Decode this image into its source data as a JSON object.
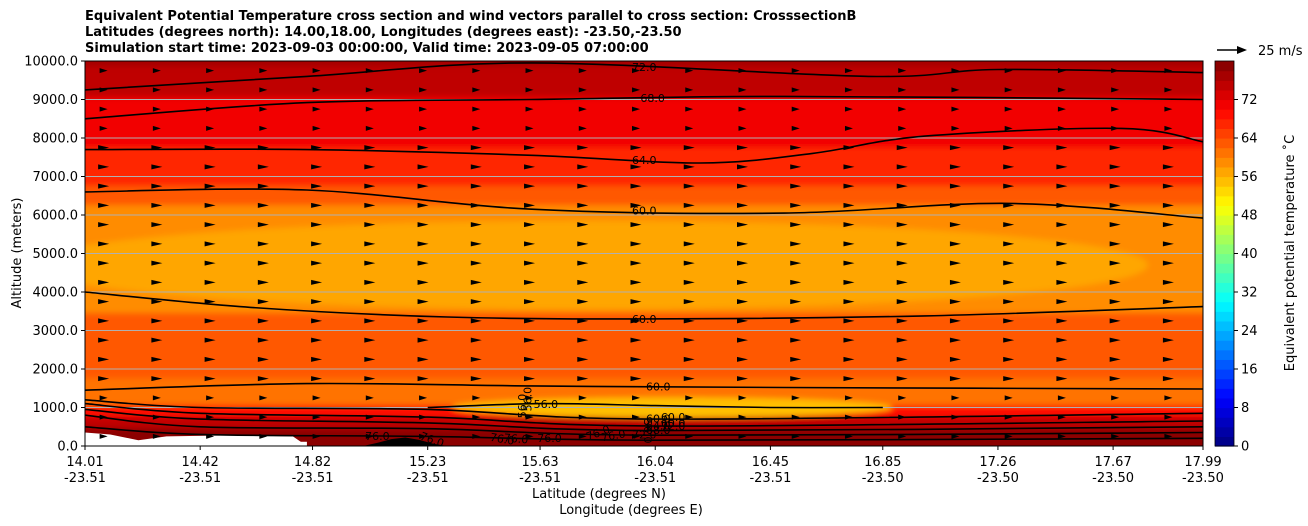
{
  "chart_data": {
    "type": "heatmap",
    "title_lines": [
      "Equivalent Potential Temperature cross section and wind vectors parallel to cross section: CrosssectionB",
      "Latitudes (degrees north): 14.00,18.00, Longitudes (degrees east): -23.50,-23.50",
      "Simulation start time: 2023-09-03 00:00:00, Valid time: 2023-09-05 07:00:00"
    ],
    "xlabel": "Latitude (degrees N)",
    "xlabel2": "Longitude (degrees E)",
    "ylabel": "Altitude (meters)",
    "x_ticks": [
      {
        "lat": "14.01",
        "lon": "-23.51"
      },
      {
        "lat": "14.42",
        "lon": "-23.51"
      },
      {
        "lat": "14.82",
        "lon": "-23.51"
      },
      {
        "lat": "15.23",
        "lon": "-23.51"
      },
      {
        "lat": "15.63",
        "lon": "-23.51"
      },
      {
        "lat": "16.04",
        "lon": "-23.51"
      },
      {
        "lat": "16.45",
        "lon": "-23.51"
      },
      {
        "lat": "16.85",
        "lon": "-23.50"
      },
      {
        "lat": "17.26",
        "lon": "-23.50"
      },
      {
        "lat": "17.67",
        "lon": "-23.50"
      },
      {
        "lat": "17.99",
        "lon": "-23.50"
      }
    ],
    "x_range": [
      14.01,
      17.99
    ],
    "y_ticks": [
      "0.0",
      "1000.0",
      "2000.0",
      "3000.0",
      "4000.0",
      "5000.0",
      "6000.0",
      "7000.0",
      "8000.0",
      "9000.0",
      "10000.0"
    ],
    "y_range": [
      0,
      10000
    ],
    "grid": "horizontal",
    "colorbar": {
      "label": "Equivalent potential temperature $^\\circ$C",
      "label_display": "Equivalent potential temperature ˚C",
      "ticks": [
        "0",
        "8",
        "16",
        "24",
        "32",
        "40",
        "48",
        "56",
        "64",
        "72"
      ],
      "range": [
        0,
        80
      ],
      "colormap": "jet"
    },
    "quiver_key": "25 m/s",
    "contours": [
      {
        "label": "60.0",
        "altitude_profile": [
          [
            14.01,
            1450
          ],
          [
            14.8,
            1620
          ],
          [
            15.6,
            1560
          ],
          [
            16.5,
            1520
          ],
          [
            17.99,
            1480
          ]
        ]
      },
      {
        "label": "60.0",
        "altitude_profile": [
          [
            14.01,
            4000
          ],
          [
            14.6,
            3600
          ],
          [
            15.3,
            3350
          ],
          [
            16.0,
            3300
          ],
          [
            17.0,
            3380
          ],
          [
            17.99,
            3620
          ]
        ]
      },
      {
        "label": "60.0",
        "altitude_profile": [
          [
            14.01,
            6600
          ],
          [
            14.8,
            6650
          ],
          [
            15.6,
            6150
          ],
          [
            16.5,
            6050
          ],
          [
            17.3,
            6300
          ],
          [
            17.99,
            5920
          ]
        ]
      },
      {
        "label": "64.0",
        "altitude_profile": [
          [
            14.01,
            7700
          ],
          [
            14.8,
            7700
          ],
          [
            15.6,
            7550
          ],
          [
            16.2,
            7350
          ],
          [
            16.6,
            7600
          ],
          [
            17.0,
            8050
          ],
          [
            17.7,
            8250
          ],
          [
            17.99,
            7900
          ]
        ]
      },
      {
        "label": "68.0",
        "altitude_profile": [
          [
            14.01,
            8500
          ],
          [
            14.8,
            8920
          ],
          [
            15.6,
            9000
          ],
          [
            16.5,
            9080
          ],
          [
            17.99,
            9000
          ]
        ]
      },
      {
        "label": "72.0",
        "altitude_profile": [
          [
            14.01,
            9250
          ],
          [
            14.8,
            9600
          ],
          [
            15.6,
            9950
          ],
          [
            16.8,
            9600
          ],
          [
            17.26,
            9780
          ],
          [
            17.99,
            9700
          ]
        ]
      },
      {
        "label": "56.0",
        "altitude_profile": [
          [
            15.23,
            1000
          ],
          [
            15.63,
            1100
          ],
          [
            16.04,
            1050
          ],
          [
            16.45,
            1000
          ],
          [
            16.85,
            1000
          ]
        ]
      },
      {
        "label": "60.0",
        "altitude_profile": [
          [
            14.01,
            1200
          ],
          [
            14.42,
            1000
          ],
          [
            15.23,
            950
          ],
          [
            16.04,
            700
          ],
          [
            17.99,
            850
          ]
        ]
      },
      {
        "label": "64.0",
        "altitude_profile": [
          [
            14.01,
            1100
          ],
          [
            14.42,
            850
          ],
          [
            15.23,
            750
          ],
          [
            16.04,
            520
          ],
          [
            17.99,
            650
          ]
        ]
      },
      {
        "label": "68.0",
        "altitude_profile": [
          [
            14.01,
            950
          ],
          [
            14.42,
            700
          ],
          [
            15.23,
            600
          ],
          [
            16.04,
            400
          ],
          [
            17.99,
            500
          ]
        ]
      },
      {
        "label": "72.0",
        "altitude_profile": [
          [
            14.01,
            800
          ],
          [
            14.42,
            500
          ],
          [
            15.23,
            450
          ],
          [
            16.04,
            280
          ],
          [
            17.99,
            350
          ]
        ]
      },
      {
        "label": "76.0",
        "altitude_profile": [
          [
            14.01,
            500
          ],
          [
            14.42,
            300
          ],
          [
            15.23,
            250
          ],
          [
            16.04,
            150
          ],
          [
            17.99,
            200
          ]
        ]
      }
    ],
    "extra_contour_labels": [
      "56.0",
      "56.0",
      "56.0",
      "60.0",
      "60.0",
      "72.0",
      "76.0",
      "76.0",
      "76.0",
      "76.0",
      "76.0",
      "76.0"
    ],
    "field_description_values": {
      "midlevel_min_C": 56,
      "surface_max_C": 78,
      "top_max_C": 76
    }
  }
}
